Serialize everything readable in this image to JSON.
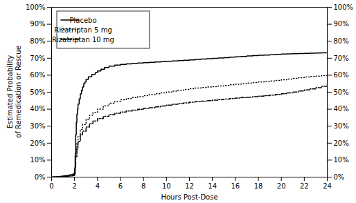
{
  "chart_data": {
    "type": "step",
    "xlabel": "Hours Post-Dose",
    "ylabel": "Estimated Probability\nof Remedication or Rescue",
    "xlim": [
      0,
      24
    ],
    "ylim": [
      0,
      1.0
    ],
    "xticks": [
      0,
      2,
      4,
      6,
      8,
      10,
      12,
      14,
      16,
      18,
      20,
      22,
      24
    ],
    "yticks": [
      {
        "value": 0,
        "label": "0%"
      },
      {
        "value": 0.1,
        "label": "10%"
      },
      {
        "value": 0.2,
        "label": "20%"
      },
      {
        "value": 0.3,
        "label": "30%"
      },
      {
        "value": 0.4,
        "label": "40%"
      },
      {
        "value": 0.5,
        "label": "50%"
      },
      {
        "value": 0.6,
        "label": "60%"
      },
      {
        "value": 0.7,
        "label": "70%"
      },
      {
        "value": 0.8,
        "label": "80%"
      },
      {
        "value": 0.9,
        "label": "90%"
      },
      {
        "value": 1.0,
        "label": "100%"
      }
    ],
    "grid": false,
    "legend": "upper left",
    "series": [
      {
        "name": "Placebo",
        "color": "black",
        "line_style": "solid",
        "x": [
          0,
          0.1,
          0.3,
          0.5,
          0.8,
          1.0,
          1.2,
          1.5,
          1.7,
          1.9,
          2.0,
          2.05,
          2.1,
          2.15,
          2.2,
          2.25,
          2.3,
          2.4,
          2.5,
          2.6,
          2.7,
          2.8,
          2.9,
          3.0,
          3.2,
          3.5,
          3.8,
          4.0,
          4.3,
          4.6,
          5.0,
          5.5,
          6.0,
          6.5,
          7.0,
          7.5,
          8.0,
          8.5,
          9.0,
          9.5,
          10.0,
          10.5,
          11.0,
          11.5,
          12.0,
          12.5,
          13.0,
          13.5,
          14.0,
          14.5,
          15.0,
          15.5,
          16.0,
          16.5,
          17.0,
          17.5,
          18.0,
          18.5,
          19.0,
          19.5,
          20.0,
          20.5,
          21.0,
          21.5,
          22.0,
          22.5,
          23.0,
          23.5,
          24.0
        ],
        "values": [
          0,
          0.001,
          0.002,
          0.003,
          0.005,
          0.007,
          0.009,
          0.012,
          0.015,
          0.02,
          0.05,
          0.13,
          0.25,
          0.32,
          0.37,
          0.4,
          0.43,
          0.46,
          0.49,
          0.51,
          0.53,
          0.55,
          0.56,
          0.575,
          0.59,
          0.605,
          0.615,
          0.625,
          0.635,
          0.645,
          0.653,
          0.66,
          0.664,
          0.667,
          0.67,
          0.672,
          0.674,
          0.676,
          0.678,
          0.68,
          0.682,
          0.684,
          0.686,
          0.688,
          0.69,
          0.693,
          0.695,
          0.697,
          0.699,
          0.701,
          0.703,
          0.706,
          0.708,
          0.71,
          0.713,
          0.715,
          0.717,
          0.719,
          0.721,
          0.723,
          0.725,
          0.726,
          0.727,
          0.728,
          0.729,
          0.73,
          0.731,
          0.732,
          0.733
        ]
      },
      {
        "name": "Rizatriptan 5 mg",
        "color": "black",
        "line_style": "dotted",
        "x": [
          0,
          0.1,
          0.5,
          1.0,
          1.5,
          1.8,
          1.9,
          2.0,
          2.05,
          2.1,
          2.2,
          2.3,
          2.5,
          2.7,
          3.0,
          3.3,
          3.6,
          4.0,
          4.5,
          5.0,
          5.5,
          6.0,
          6.5,
          7.0,
          7.5,
          8.0,
          8.5,
          9.0,
          9.5,
          10.0,
          10.5,
          11.0,
          11.5,
          12.0,
          12.5,
          13.0,
          13.5,
          14.0,
          14.5,
          15.0,
          15.5,
          16.0,
          16.5,
          17.0,
          17.5,
          18.0,
          18.5,
          19.0,
          19.5,
          20.0,
          20.5,
          21.0,
          21.5,
          22.0,
          22.5,
          23.0,
          23.5,
          24.0
        ],
        "values": [
          0,
          0.001,
          0.003,
          0.005,
          0.008,
          0.01,
          0.012,
          0.02,
          0.07,
          0.14,
          0.2,
          0.24,
          0.28,
          0.31,
          0.34,
          0.365,
          0.38,
          0.4,
          0.42,
          0.435,
          0.445,
          0.455,
          0.462,
          0.468,
          0.474,
          0.48,
          0.486,
          0.491,
          0.496,
          0.501,
          0.506,
          0.511,
          0.516,
          0.52,
          0.524,
          0.527,
          0.53,
          0.533,
          0.537,
          0.54,
          0.544,
          0.547,
          0.55,
          0.554,
          0.557,
          0.56,
          0.563,
          0.566,
          0.569,
          0.573,
          0.577,
          0.581,
          0.585,
          0.589,
          0.592,
          0.595,
          0.598,
          0.602
        ]
      },
      {
        "name": "Rizatriptan 10 mg",
        "color": "black",
        "line_style": "dashdot",
        "x": [
          0,
          0.1,
          0.5,
          1.0,
          1.5,
          1.8,
          1.9,
          2.0,
          2.05,
          2.1,
          2.2,
          2.3,
          2.5,
          2.7,
          3.0,
          3.3,
          3.6,
          4.0,
          4.5,
          5.0,
          5.5,
          6.0,
          6.5,
          7.0,
          7.5,
          8.0,
          8.5,
          9.0,
          9.5,
          10.0,
          10.5,
          11.0,
          11.5,
          12.0,
          12.5,
          13.0,
          13.5,
          14.0,
          14.5,
          15.0,
          15.5,
          16.0,
          16.5,
          17.0,
          17.5,
          18.0,
          18.5,
          19.0,
          19.5,
          20.0,
          20.5,
          21.0,
          21.5,
          22.0,
          22.5,
          23.0,
          23.5,
          24.0
        ],
        "values": [
          0,
          0.001,
          0.002,
          0.004,
          0.006,
          0.008,
          0.01,
          0.015,
          0.055,
          0.12,
          0.17,
          0.21,
          0.25,
          0.27,
          0.295,
          0.315,
          0.33,
          0.345,
          0.358,
          0.368,
          0.376,
          0.383,
          0.389,
          0.394,
          0.399,
          0.404,
          0.409,
          0.414,
          0.419,
          0.424,
          0.429,
          0.433,
          0.437,
          0.441,
          0.444,
          0.447,
          0.45,
          0.453,
          0.456,
          0.459,
          0.462,
          0.465,
          0.468,
          0.471,
          0.474,
          0.477,
          0.48,
          0.483,
          0.487,
          0.491,
          0.496,
          0.501,
          0.507,
          0.513,
          0.519,
          0.526,
          0.535,
          0.545
        ]
      }
    ]
  }
}
